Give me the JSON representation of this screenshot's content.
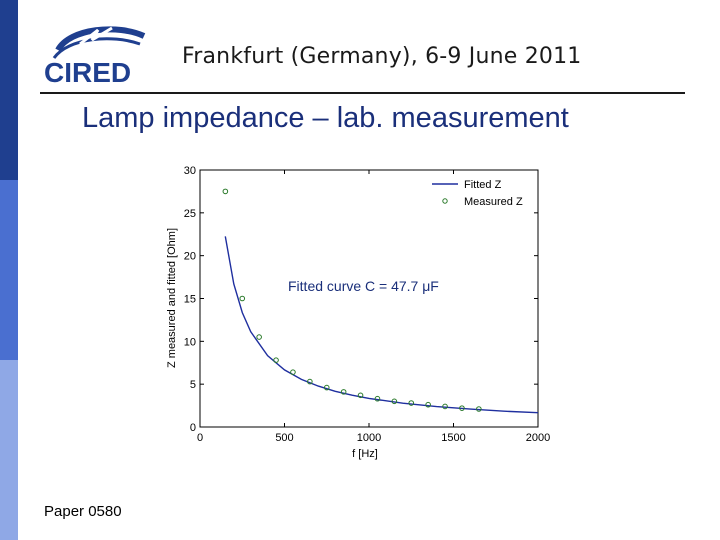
{
  "header": {
    "logo_text": "CIRED",
    "conference": "Frankfurt (Germany), 6-9 June 2011"
  },
  "slide": {
    "title": "Lamp impedance – lab. measurement",
    "footer": "Paper 0580"
  },
  "colors": {
    "sidebar_dark": "#1f3f8f",
    "sidebar_mid": "#4a6fd0",
    "sidebar_light": "#8fa8e6",
    "title_blue": "#1a2f7a",
    "series_blue": "#1f2f9f",
    "marker_green": "#2a7a2a"
  },
  "chart_data": {
    "type": "line",
    "title": "",
    "xlabel": "f [Hz]",
    "ylabel": "Z measured and fitted [Ohm]",
    "xlim": [
      0,
      2000
    ],
    "ylim": [
      0,
      30
    ],
    "xticks": [
      0,
      500,
      1000,
      1500,
      2000
    ],
    "yticks": [
      0,
      5,
      10,
      15,
      20,
      25,
      30
    ],
    "grid": false,
    "legend_position": "top-right",
    "annotation": "Fitted curve C = 47.7 μF",
    "series": [
      {
        "name": "Fitted Z",
        "kind": "line",
        "color": "#1f2f9f",
        "x": [
          150,
          200,
          250,
          300,
          400,
          500,
          600,
          700,
          800,
          900,
          1000,
          1200,
          1400,
          1600,
          1800,
          2000
        ],
        "y": [
          22.25,
          16.69,
          13.35,
          11.12,
          8.34,
          6.67,
          5.56,
          4.77,
          4.17,
          3.71,
          3.34,
          2.78,
          2.38,
          2.09,
          1.85,
          1.67
        ]
      },
      {
        "name": "Measured Z",
        "kind": "scatter",
        "color": "#2a7a2a",
        "x": [
          150,
          250,
          350,
          450,
          550,
          650,
          750,
          850,
          950,
          1050,
          1150,
          1250,
          1350,
          1450,
          1550,
          1650
        ],
        "y": [
          27.5,
          15.0,
          10.5,
          7.8,
          6.4,
          5.3,
          4.6,
          4.1,
          3.7,
          3.3,
          3.0,
          2.8,
          2.6,
          2.4,
          2.2,
          2.1
        ]
      }
    ]
  }
}
